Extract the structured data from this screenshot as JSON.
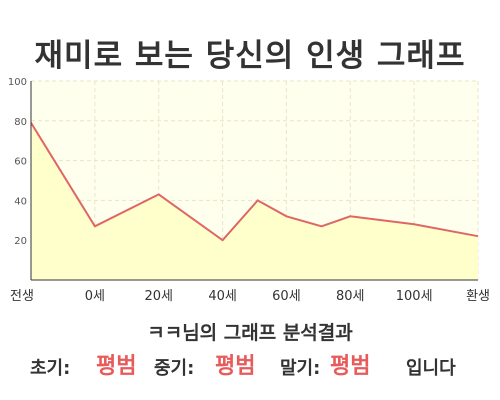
{
  "title": "재미로 보는 당신의 인생 그래프",
  "chart_data": {
    "type": "area",
    "x": [
      "전생",
      "0세",
      "20세",
      "40세",
      "60세",
      "80세",
      "100세",
      "환생"
    ],
    "series": [
      {
        "points": [
          [
            0,
            79
          ],
          [
            1,
            27
          ],
          [
            2,
            43
          ],
          [
            3,
            20
          ],
          [
            3.55,
            40
          ],
          [
            4,
            32
          ],
          [
            4.55,
            27
          ],
          [
            5,
            32
          ],
          [
            6,
            28
          ],
          [
            7,
            22
          ]
        ]
      }
    ],
    "ylim": [
      0,
      100
    ],
    "yticks": [
      20,
      40,
      60,
      80,
      100
    ],
    "grid": true,
    "colors": {
      "line": "#e06666",
      "fill": "#ffffcc",
      "plot_bg": "#ffffee",
      "grid": "#e8e4c8",
      "axis": "#333333"
    }
  },
  "analysis": {
    "heading": "ㅋㅋ님의 그래프 분석결과",
    "early_label": "초기:",
    "early_value": "평범",
    "middle_label": "중기:",
    "middle_value": "평범",
    "late_label": "말기:",
    "late_value": "평범",
    "suffix": "입니다"
  }
}
